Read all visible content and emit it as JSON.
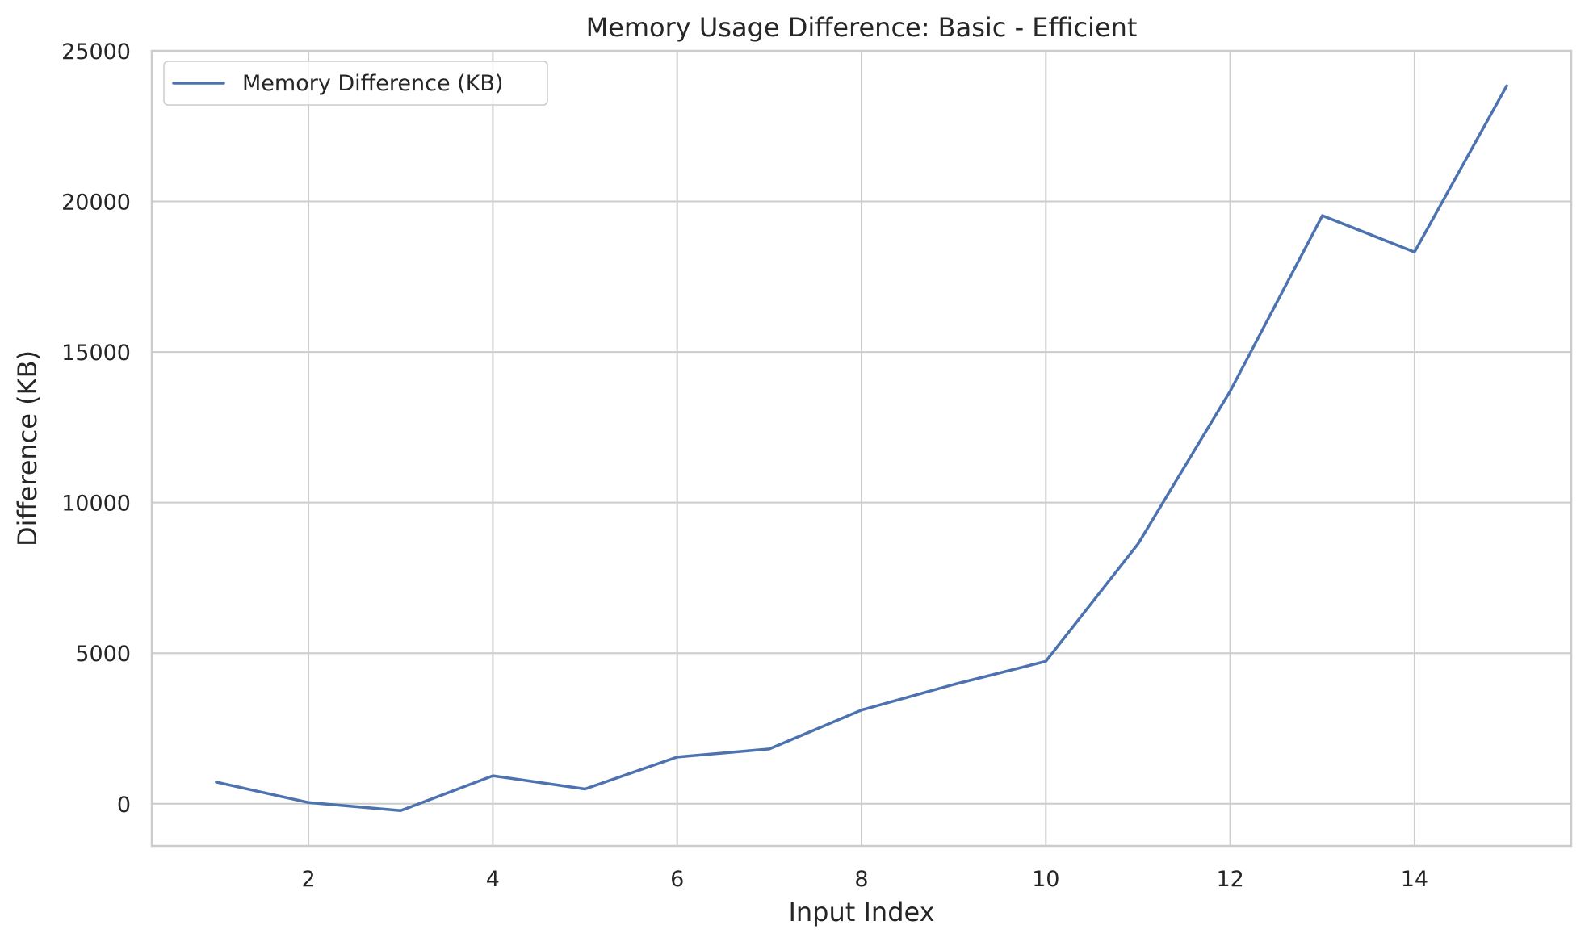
{
  "chart_data": {
    "type": "line",
    "title": "Memory Usage Difference: Basic - Efficient",
    "xlabel": "Input Index",
    "ylabel": "Difference (KB)",
    "xlim": [
      0.3,
      15.7
    ],
    "ylim": [
      -1400,
      25000
    ],
    "xticks": [
      2,
      4,
      6,
      8,
      10,
      12,
      14
    ],
    "yticks": [
      0,
      5000,
      10000,
      15000,
      20000,
      25000
    ],
    "grid": true,
    "legend_position": "top-left",
    "series": [
      {
        "name": "Memory Difference (KB)",
        "color": "#4c72b0",
        "x": [
          1,
          2,
          3,
          4,
          5,
          6,
          7,
          8,
          9,
          10,
          11,
          12,
          13,
          14,
          15
        ],
        "y": [
          720,
          40,
          -230,
          930,
          490,
          1550,
          1820,
          3110,
          3960,
          4730,
          8630,
          13700,
          19530,
          18320,
          23840
        ]
      }
    ]
  }
}
